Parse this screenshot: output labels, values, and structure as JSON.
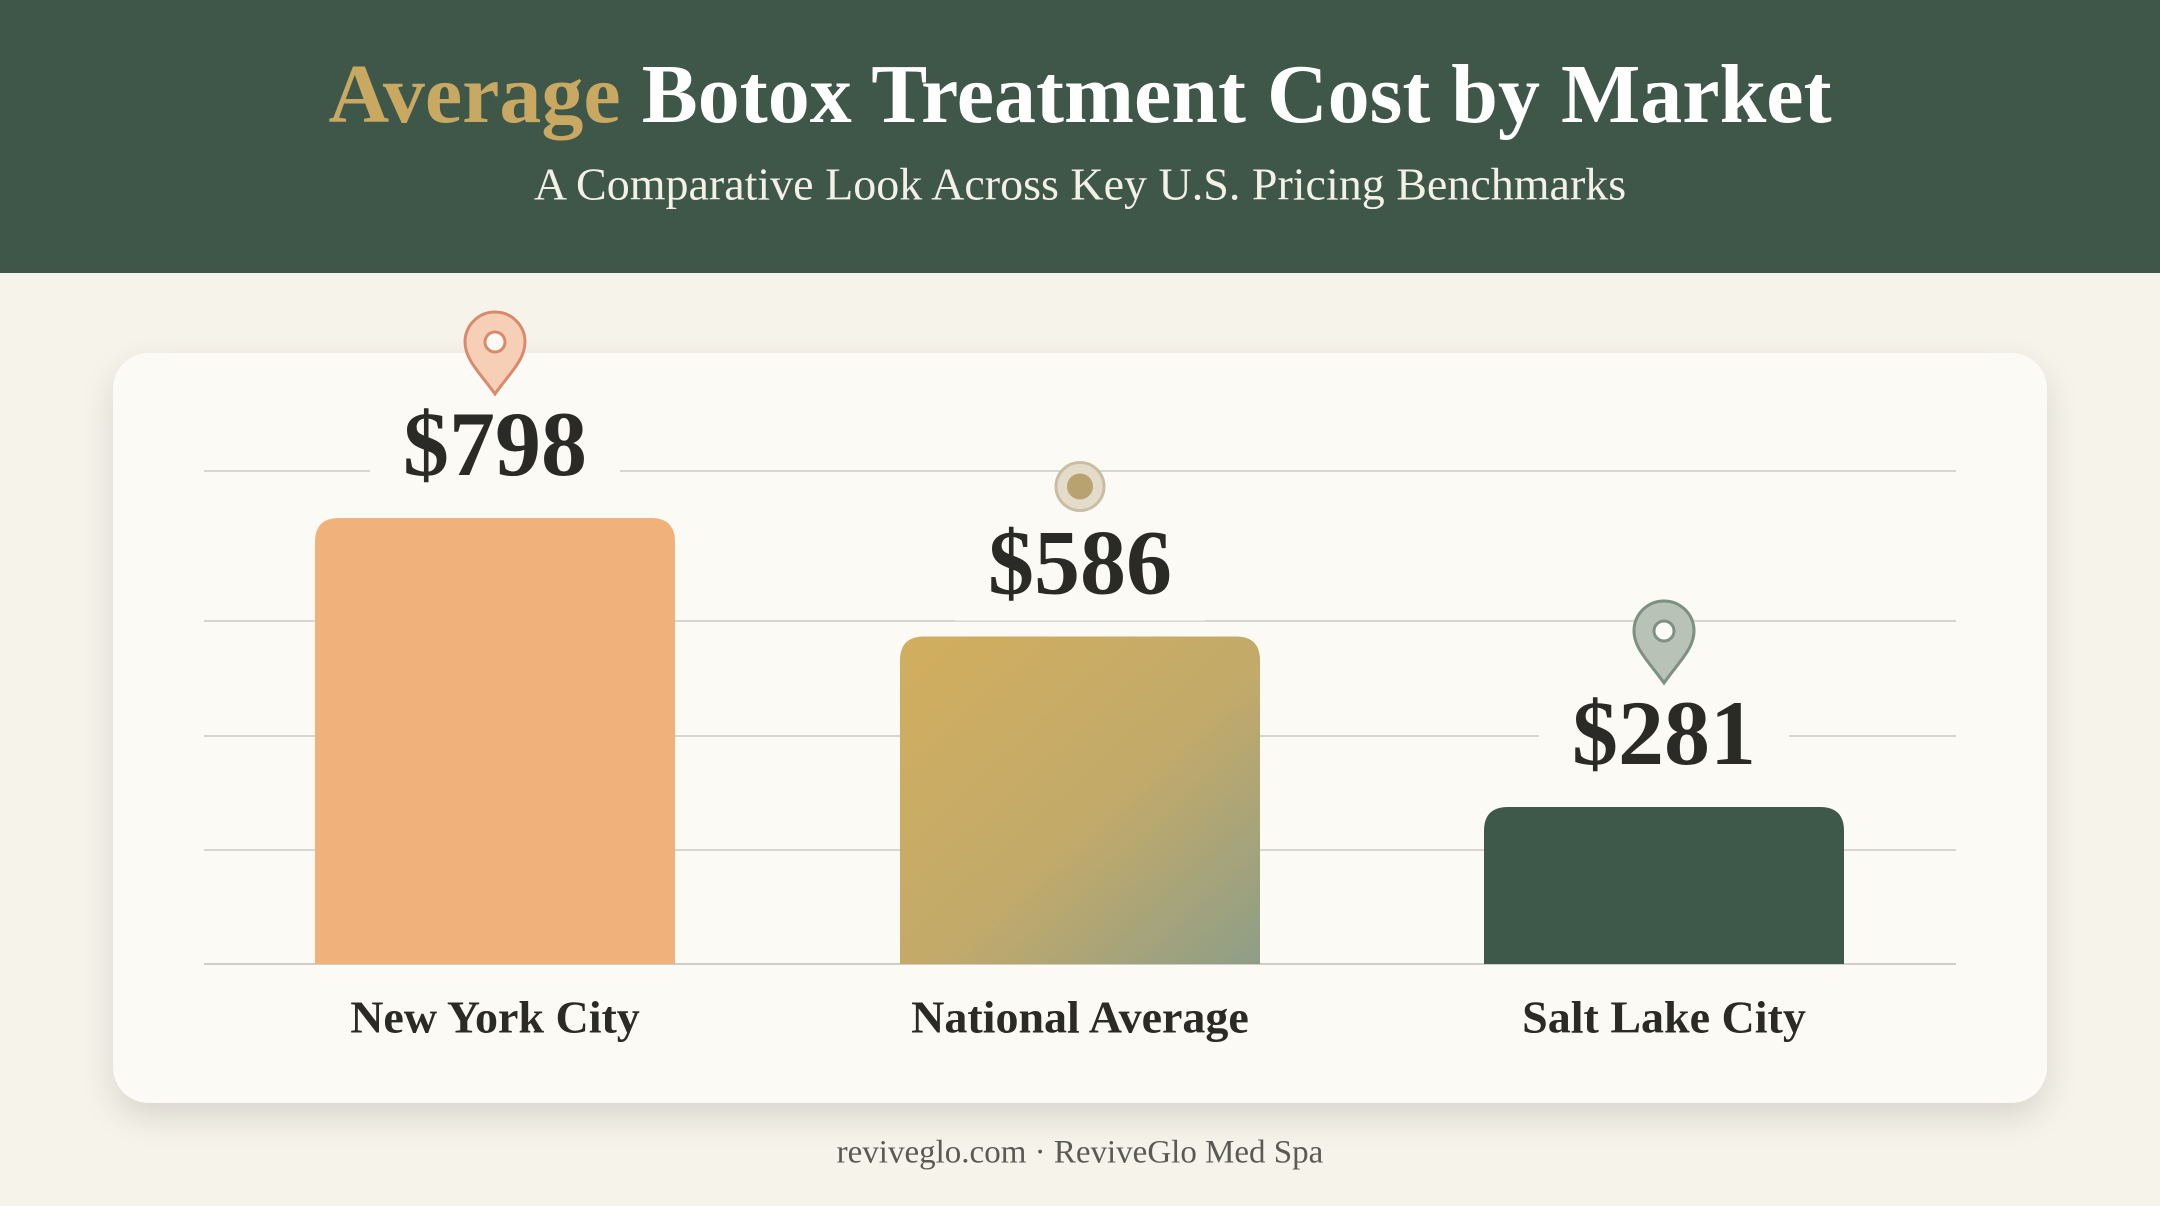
{
  "chart_data": {
    "type": "bar",
    "title": "Average Botox Treatment Cost by Market",
    "subtitle": "A Comparative Look Across Key U.S. Pricing Benchmarks",
    "categories": [
      "New York City",
      "National Average",
      "Salt Lake City"
    ],
    "values": [
      798,
      586,
      281
    ],
    "value_labels": [
      "$798",
      "$586",
      "$281"
    ],
    "colors": [
      "#f0b27a",
      "#c9ad62",
      "#3e5849"
    ],
    "ylim": [
      0,
      900
    ],
    "source": "reviveglo.com · ReviveGlo Med Spa"
  }
}
